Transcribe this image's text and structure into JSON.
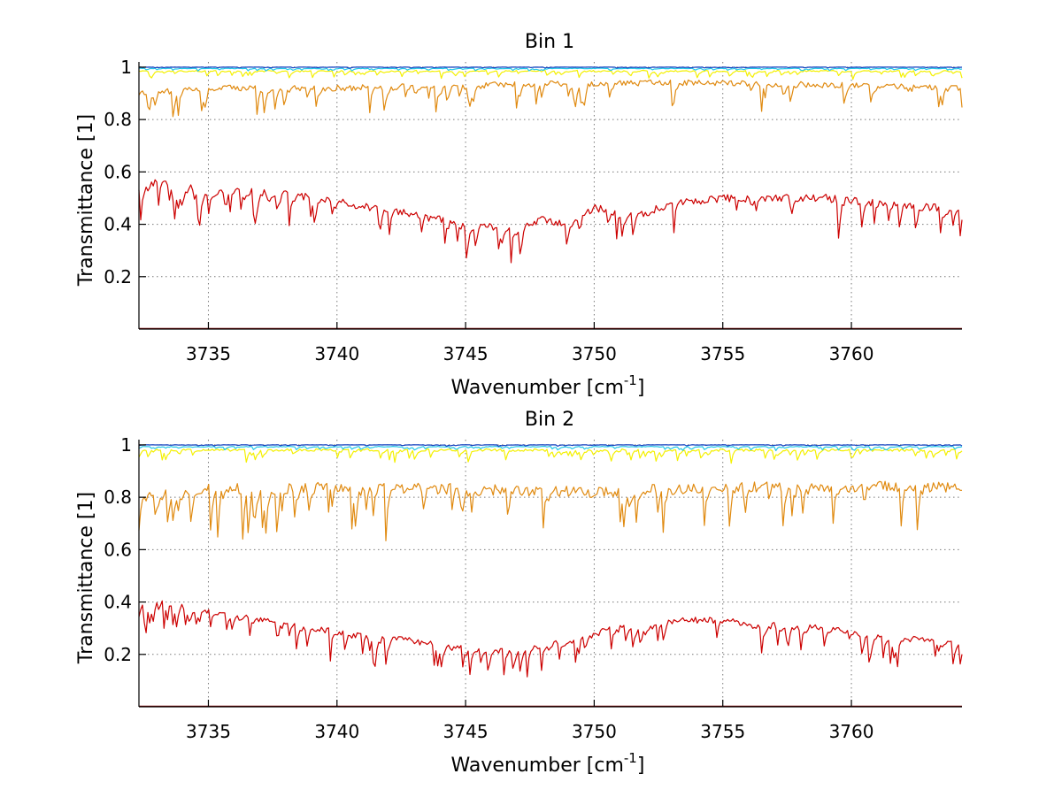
{
  "chart_data": [
    {
      "type": "line",
      "title": "Bin 1",
      "xlabel": "Wavenumber [cm",
      "xlabel_sup": "-1",
      "xlabel_close": "]",
      "ylabel": "Transmittance [1]",
      "xlim": [
        3732.3,
        3764.3
      ],
      "ylim": [
        0,
        1.02
      ],
      "xticks": [
        3735,
        3740,
        3745,
        3750,
        3755,
        3760
      ],
      "yticks": [
        0.2,
        0.4,
        0.6,
        0.8,
        1
      ],
      "grid": true,
      "series": [
        {
          "name": "dark red",
          "color": "#800000",
          "base": 0.0,
          "amp": 0.0,
          "noise": 0.0
        },
        {
          "name": "red",
          "color": "#cc0000",
          "curve": "low",
          "points": [
            [
              3732.3,
              0.52
            ],
            [
              3733,
              0.57
            ],
            [
              3735,
              0.52
            ],
            [
              3737,
              0.53
            ],
            [
              3739,
              0.5
            ],
            [
              3741,
              0.47
            ],
            [
              3743,
              0.44
            ],
            [
              3745,
              0.4
            ],
            [
              3747,
              0.38
            ],
            [
              3748,
              0.42
            ],
            [
              3749,
              0.4
            ],
            [
              3750,
              0.46
            ],
            [
              3751,
              0.45
            ],
            [
              3752,
              0.44
            ],
            [
              3753,
              0.48
            ],
            [
              3755,
              0.5
            ],
            [
              3757,
              0.5
            ],
            [
              3759,
              0.5
            ],
            [
              3760,
              0.49
            ],
            [
              3762,
              0.48
            ],
            [
              3764.3,
              0.45
            ]
          ],
          "dips": 0.12
        },
        {
          "name": "orange",
          "color": "#e08a10",
          "curve": "mid",
          "points": [
            [
              3732.3,
              0.9
            ],
            [
              3735,
              0.92
            ],
            [
              3740,
              0.92
            ],
            [
              3745,
              0.93
            ],
            [
              3750,
              0.94
            ],
            [
              3755,
              0.94
            ],
            [
              3760,
              0.93
            ],
            [
              3764.3,
              0.92
            ]
          ],
          "dips": 0.09
        },
        {
          "name": "yellow",
          "color": "#f4f000",
          "curve": "top",
          "points": [
            [
              3732.3,
              0.985
            ],
            [
              3764.3,
              0.985
            ]
          ],
          "dips": 0.025
        },
        {
          "name": "cyan",
          "color": "#25c8e8",
          "curve": "top",
          "points": [
            [
              3732.3,
              0.995
            ],
            [
              3764.3,
              0.995
            ]
          ],
          "dips": 0.008
        },
        {
          "name": "blue",
          "color": "#1040c0",
          "curve": "top",
          "points": [
            [
              3732.3,
              1.0
            ],
            [
              3764.3,
              1.0
            ]
          ],
          "dips": 0.003
        }
      ]
    },
    {
      "type": "line",
      "title": "Bin 2",
      "xlabel": "Wavenumber [cm",
      "xlabel_sup": "-1",
      "xlabel_close": "]",
      "ylabel": "Transmittance [1]",
      "xlim": [
        3732.3,
        3764.3
      ],
      "ylim": [
        0,
        1.02
      ],
      "xticks": [
        3735,
        3740,
        3745,
        3750,
        3755,
        3760
      ],
      "yticks": [
        0.2,
        0.4,
        0.6,
        0.8,
        1
      ],
      "grid": true,
      "series": [
        {
          "name": "dark red",
          "color": "#800000",
          "base": 0.0,
          "amp": 0.0,
          "noise": 0.0
        },
        {
          "name": "red",
          "color": "#cc0000",
          "curve": "low",
          "points": [
            [
              3732.3,
              0.39
            ],
            [
              3733,
              0.41
            ],
            [
              3735,
              0.36
            ],
            [
              3737,
              0.33
            ],
            [
              3739,
              0.3
            ],
            [
              3741,
              0.27
            ],
            [
              3743,
              0.25
            ],
            [
              3745,
              0.22
            ],
            [
              3747,
              0.21
            ],
            [
              3748,
              0.24
            ],
            [
              3749,
              0.25
            ],
            [
              3750,
              0.28
            ],
            [
              3751,
              0.3
            ],
            [
              3752,
              0.29
            ],
            [
              3753,
              0.33
            ],
            [
              3755,
              0.33
            ],
            [
              3757,
              0.31
            ],
            [
              3759,
              0.3
            ],
            [
              3760,
              0.28
            ],
            [
              3762,
              0.26
            ],
            [
              3764.3,
              0.24
            ]
          ],
          "dips": 0.1
        },
        {
          "name": "orange",
          "color": "#e08a10",
          "curve": "mid",
          "points": [
            [
              3732.3,
              0.8
            ],
            [
              3735,
              0.83
            ],
            [
              3740,
              0.84
            ],
            [
              3745,
              0.83
            ],
            [
              3750,
              0.82
            ],
            [
              3755,
              0.84
            ],
            [
              3760,
              0.84
            ],
            [
              3764.3,
              0.84
            ]
          ],
          "dips": 0.17
        },
        {
          "name": "yellow",
          "color": "#f4f000",
          "curve": "top",
          "points": [
            [
              3732.3,
              0.98
            ],
            [
              3764.3,
              0.98
            ]
          ],
          "dips": 0.04
        },
        {
          "name": "cyan",
          "color": "#25c8e8",
          "curve": "top",
          "points": [
            [
              3732.3,
              0.993
            ],
            [
              3764.3,
              0.993
            ]
          ],
          "dips": 0.012
        },
        {
          "name": "blue",
          "color": "#1040c0",
          "curve": "top",
          "points": [
            [
              3732.3,
              1.0
            ],
            [
              3764.3,
              1.0
            ]
          ],
          "dips": 0.004
        }
      ]
    }
  ]
}
